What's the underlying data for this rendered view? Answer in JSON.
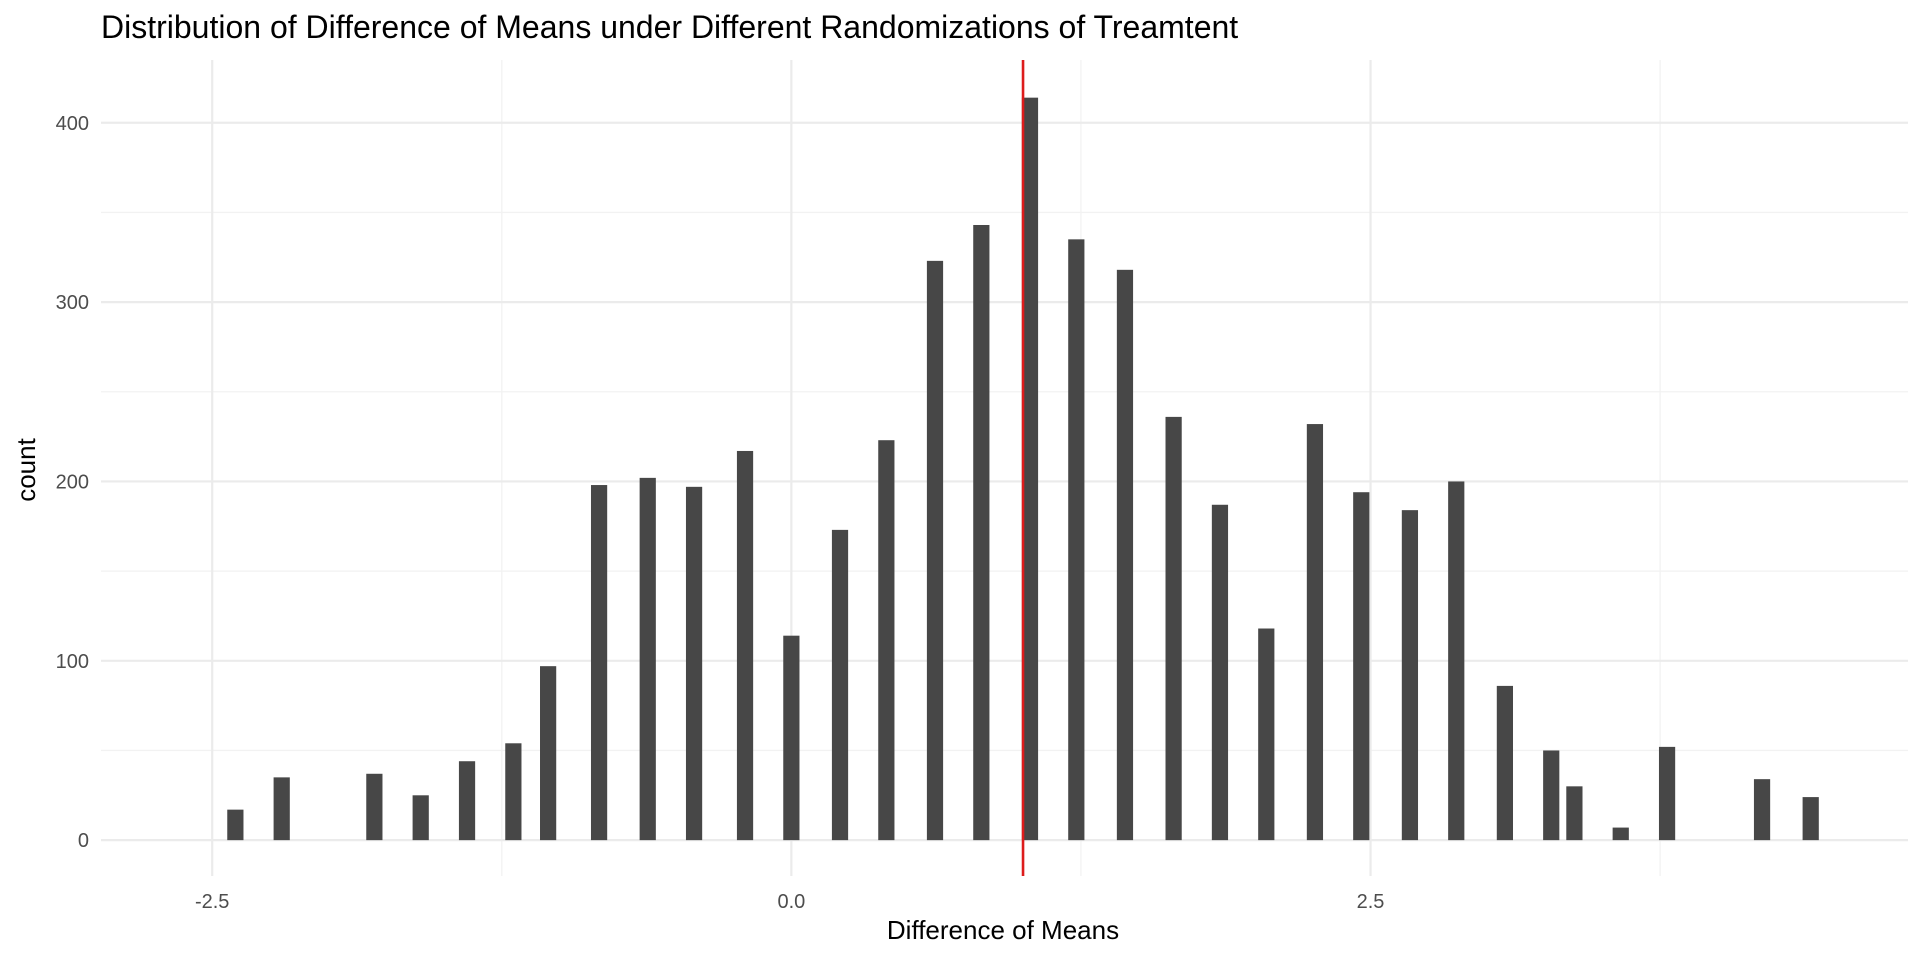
{
  "chart_data": {
    "type": "bar",
    "title": "Distribution of Difference of Means under Different Randomizations of Treamtent",
    "xlabel": "Difference of Means",
    "ylabel": "count",
    "xlim": [
      -2.98,
      4.82
    ],
    "ylim": [
      -20,
      435
    ],
    "x_ticks": [
      -2.5,
      0.0,
      2.5
    ],
    "x_tick_labels": [
      "-2.5",
      "0.0",
      "2.5"
    ],
    "x_minor_ticks": [
      -1.25,
      1.25,
      3.75
    ],
    "y_ticks": [
      0,
      100,
      200,
      300,
      400
    ],
    "y_tick_labels": [
      "0",
      "100",
      "200",
      "300",
      "400"
    ],
    "y_minor_ticks": [
      50,
      150,
      250,
      350
    ],
    "bar_width": 0.07,
    "x": [
      -2.4,
      -2.2,
      -1.8,
      -1.6,
      -1.4,
      -1.2,
      -1.05,
      -0.83,
      -0.62,
      -0.42,
      -0.2,
      0.0,
      0.21,
      0.41,
      0.62,
      0.82,
      1.03,
      1.23,
      1.44,
      1.65,
      1.85,
      2.05,
      2.26,
      2.46,
      2.67,
      2.87,
      3.08,
      3.28,
      3.38,
      3.58,
      3.78,
      4.19,
      4.4
    ],
    "values": [
      17,
      35,
      37,
      25,
      44,
      54,
      97,
      198,
      202,
      197,
      217,
      114,
      173,
      223,
      323,
      343,
      414,
      335,
      318,
      236,
      187,
      118,
      232,
      194,
      184,
      200,
      86,
      50,
      30,
      7,
      52,
      34,
      24
    ],
    "reference_line": {
      "x": 1.0,
      "color": "#dd1c1c"
    },
    "grid": true,
    "legend": "none",
    "colors": {
      "bar": "#474747",
      "grid_major": "#ebebeb",
      "grid_minor": "#f2f2f2",
      "background": "#ffffff"
    }
  }
}
